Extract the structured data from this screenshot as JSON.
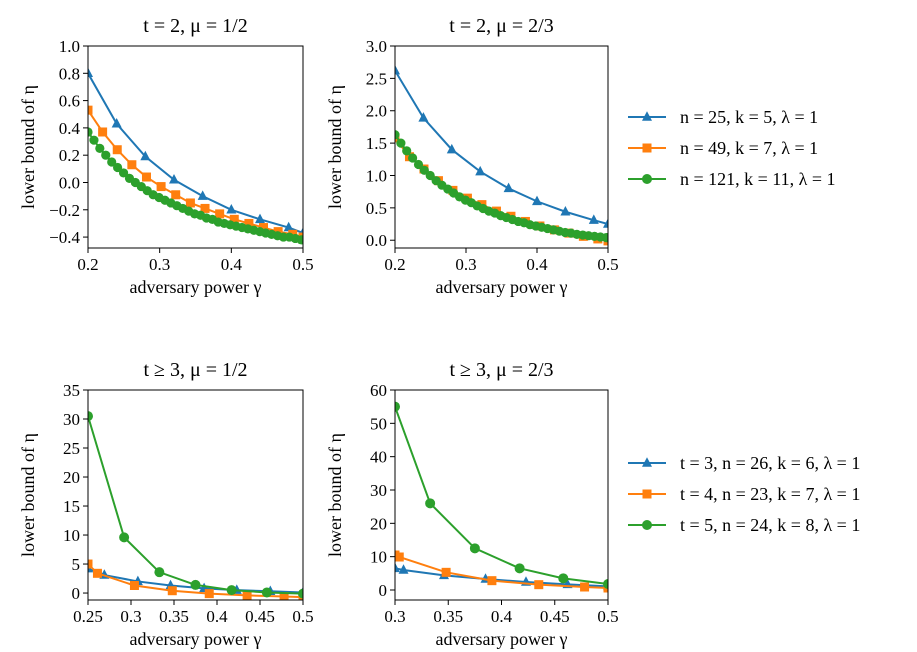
{
  "colors": {
    "blue": "#1f77b4",
    "orange": "#ff7f0e",
    "green": "#2ca02c"
  },
  "legends": [
    {
      "entries": [
        {
          "label": "n = 25, k = 5, λ = 1",
          "color": "#1f77b4",
          "marker": "triangle"
        },
        {
          "label": "n = 49, k = 7, λ = 1",
          "color": "#ff7f0e",
          "marker": "square"
        },
        {
          "label": "n = 121, k = 11, λ = 1",
          "color": "#2ca02c",
          "marker": "circle"
        }
      ]
    },
    {
      "entries": [
        {
          "label": "t = 3, n = 26, k = 6, λ = 1",
          "color": "#1f77b4",
          "marker": "triangle"
        },
        {
          "label": "t = 4, n = 23, k = 7, λ = 1",
          "color": "#ff7f0e",
          "marker": "square"
        },
        {
          "label": "t = 5, n = 24, k = 8, λ = 1",
          "color": "#2ca02c",
          "marker": "circle"
        }
      ]
    }
  ],
  "chart_data": [
    {
      "type": "line",
      "title": "t = 2, μ = 1/2",
      "xlabel": "adversary power γ",
      "ylabel": "lower bound of η",
      "xlim": [
        0.2,
        0.5
      ],
      "ylim": [
        -0.48,
        1.0
      ],
      "xticks": [
        0.2,
        0.3,
        0.4,
        0.5
      ],
      "xtick_labels": [
        "0.2",
        "0.3",
        "0.4",
        "0.5"
      ],
      "yticks": [
        -0.4,
        -0.2,
        0.0,
        0.2,
        0.4,
        0.6,
        0.8,
        1.0
      ],
      "ytick_labels": [
        "−0.4",
        "−0.2",
        "0.0",
        "0.2",
        "0.4",
        "0.6",
        "0.8",
        "1.0"
      ],
      "grid": false,
      "series": [
        {
          "name": "n = 25, k = 5, λ = 1",
          "color": "#1f77b4",
          "marker": "triangle",
          "x": [
            0.2,
            0.24,
            0.28,
            0.32,
            0.36,
            0.4,
            0.44,
            0.48,
            0.5
          ],
          "y": [
            0.8,
            0.43,
            0.19,
            0.02,
            -0.1,
            -0.2,
            -0.27,
            -0.33,
            -0.37
          ]
        },
        {
          "name": "n = 49, k = 7, λ = 1",
          "color": "#ff7f0e",
          "marker": "square",
          "x": [
            0.2,
            0.2204,
            0.2408,
            0.2612,
            0.2816,
            0.302,
            0.3224,
            0.3429,
            0.3633,
            0.3837,
            0.4041,
            0.4245,
            0.4449,
            0.4653,
            0.4857,
            0.5
          ],
          "y": [
            0.53,
            0.37,
            0.24,
            0.13,
            0.04,
            -0.03,
            -0.09,
            -0.15,
            -0.19,
            -0.23,
            -0.27,
            -0.3,
            -0.33,
            -0.36,
            -0.38,
            -0.4
          ]
        },
        {
          "name": "n = 121, k = 11, λ = 1",
          "color": "#2ca02c",
          "marker": "circle",
          "x": [
            0.2,
            0.2083,
            0.2165,
            0.2248,
            0.2331,
            0.2413,
            0.2496,
            0.2579,
            0.2661,
            0.2744,
            0.2826,
            0.2909,
            0.2992,
            0.3074,
            0.3157,
            0.324,
            0.3322,
            0.3405,
            0.3488,
            0.357,
            0.3653,
            0.3736,
            0.3818,
            0.3901,
            0.3983,
            0.4066,
            0.4149,
            0.4231,
            0.4314,
            0.4397,
            0.4479,
            0.4562,
            0.4645,
            0.4727,
            0.481,
            0.4893,
            0.4975,
            0.5
          ],
          "y": [
            0.37,
            0.31,
            0.25,
            0.2,
            0.15,
            0.11,
            0.07,
            0.03,
            0.0,
            -0.03,
            -0.06,
            -0.09,
            -0.11,
            -0.13,
            -0.15,
            -0.17,
            -0.19,
            -0.21,
            -0.23,
            -0.24,
            -0.26,
            -0.27,
            -0.29,
            -0.3,
            -0.31,
            -0.32,
            -0.33,
            -0.34,
            -0.35,
            -0.36,
            -0.37,
            -0.38,
            -0.39,
            -0.4,
            -0.4,
            -0.41,
            -0.42,
            -0.42
          ]
        }
      ]
    },
    {
      "type": "line",
      "title": "t = 2, μ = 2/3",
      "xlabel": "adversary power γ",
      "ylabel": "lower bound of η",
      "xlim": [
        0.2,
        0.5
      ],
      "ylim": [
        -0.12,
        3.0
      ],
      "xticks": [
        0.2,
        0.3,
        0.4,
        0.5
      ],
      "xtick_labels": [
        "0.2",
        "0.3",
        "0.4",
        "0.5"
      ],
      "yticks": [
        0.0,
        0.5,
        1.0,
        1.5,
        2.0,
        2.5,
        3.0
      ],
      "ytick_labels": [
        "0.0",
        "0.5",
        "1.0",
        "1.5",
        "2.0",
        "2.5",
        "3.0"
      ],
      "grid": false,
      "series": [
        {
          "name": "n = 25, k = 5, λ = 1",
          "color": "#1f77b4",
          "marker": "triangle",
          "x": [
            0.2,
            0.24,
            0.28,
            0.32,
            0.36,
            0.4,
            0.44,
            0.48,
            0.5
          ],
          "y": [
            2.62,
            1.89,
            1.4,
            1.06,
            0.8,
            0.6,
            0.44,
            0.31,
            0.25
          ]
        },
        {
          "name": "n = 49, k = 7, λ = 1",
          "color": "#ff7f0e",
          "marker": "square",
          "x": [
            0.2,
            0.2204,
            0.2408,
            0.2612,
            0.2816,
            0.302,
            0.3224,
            0.3429,
            0.3633,
            0.3837,
            0.4041,
            0.4245,
            0.4449,
            0.4653,
            0.4857,
            0.5
          ],
          "y": [
            1.58,
            1.29,
            1.1,
            0.92,
            0.77,
            0.65,
            0.55,
            0.45,
            0.37,
            0.29,
            0.22,
            0.16,
            0.11,
            0.06,
            0.02,
            -0.01
          ]
        },
        {
          "name": "n = 121, k = 11, λ = 1",
          "color": "#2ca02c",
          "marker": "circle",
          "x": [
            0.2,
            0.2083,
            0.2165,
            0.2248,
            0.2331,
            0.2413,
            0.2496,
            0.2579,
            0.2661,
            0.2744,
            0.2826,
            0.2909,
            0.2992,
            0.3074,
            0.3157,
            0.324,
            0.3322,
            0.3405,
            0.3488,
            0.357,
            0.3653,
            0.3736,
            0.3818,
            0.3901,
            0.3983,
            0.4066,
            0.4149,
            0.4231,
            0.4314,
            0.4397,
            0.4479,
            0.4562,
            0.4645,
            0.4727,
            0.481,
            0.4893,
            0.4975,
            0.5
          ],
          "y": [
            1.63,
            1.5,
            1.38,
            1.27,
            1.17,
            1.08,
            1.0,
            0.92,
            0.85,
            0.79,
            0.73,
            0.67,
            0.62,
            0.58,
            0.53,
            0.49,
            0.45,
            0.42,
            0.38,
            0.35,
            0.32,
            0.29,
            0.27,
            0.24,
            0.22,
            0.2,
            0.18,
            0.16,
            0.14,
            0.12,
            0.11,
            0.09,
            0.08,
            0.07,
            0.06,
            0.05,
            0.04,
            0.04
          ]
        }
      ]
    },
    {
      "type": "line",
      "title": "t ≥ 3, μ = 1/2",
      "xlabel": "adversary power γ",
      "ylabel": "lower bound of η",
      "xlim": [
        0.25,
        0.5
      ],
      "ylim": [
        -1.2,
        35
      ],
      "xticks": [
        0.25,
        0.3,
        0.35,
        0.4,
        0.45,
        0.5
      ],
      "xtick_labels": [
        "0.25",
        "0.3",
        "0.35",
        "0.4",
        "0.45",
        "0.5"
      ],
      "yticks": [
        0,
        5,
        10,
        15,
        20,
        25,
        30,
        35
      ],
      "ytick_labels": [
        "0",
        "5",
        "10",
        "15",
        "20",
        "25",
        "30",
        "35"
      ],
      "grid": false,
      "series": [
        {
          "name": "t = 3, n = 26, k = 6, λ = 1",
          "color": "#1f77b4",
          "marker": "triangle",
          "x": [
            0.25,
            0.269,
            0.308,
            0.346,
            0.385,
            0.423,
            0.462,
            0.5
          ],
          "y": [
            4.2,
            3.1,
            2.0,
            1.3,
            0.8,
            0.5,
            0.3,
            0.1
          ]
        },
        {
          "name": "t = 4, n = 23, k = 7, λ = 1",
          "color": "#ff7f0e",
          "marker": "square",
          "x": [
            0.25,
            0.261,
            0.304,
            0.348,
            0.391,
            0.435,
            0.478,
            0.5
          ],
          "y": [
            5.0,
            3.4,
            1.3,
            0.4,
            -0.1,
            -0.4,
            -0.6,
            -0.7
          ]
        },
        {
          "name": "t = 5, n = 24, k = 8, λ = 1",
          "color": "#2ca02c",
          "marker": "circle",
          "x": [
            0.25,
            0.292,
            0.333,
            0.375,
            0.417,
            0.458,
            0.5
          ],
          "y": [
            30.5,
            9.6,
            3.6,
            1.4,
            0.5,
            0.1,
            -0.1
          ]
        }
      ]
    },
    {
      "type": "line",
      "title": "t ≥ 3, μ = 2/3",
      "xlabel": "adversary power γ",
      "ylabel": "lower bound of η",
      "xlim": [
        0.3,
        0.5
      ],
      "ylim": [
        -3,
        60
      ],
      "xticks": [
        0.3,
        0.35,
        0.4,
        0.45,
        0.5
      ],
      "xtick_labels": [
        "0.3",
        "0.35",
        "0.4",
        "0.45",
        "0.5"
      ],
      "yticks": [
        0,
        10,
        20,
        30,
        40,
        50,
        60
      ],
      "ytick_labels": [
        "0",
        "10",
        "20",
        "30",
        "40",
        "50",
        "60"
      ],
      "grid": false,
      "series": [
        {
          "name": "t = 3, n = 26, k = 6, λ = 1",
          "color": "#1f77b4",
          "marker": "triangle",
          "x": [
            0.3,
            0.308,
            0.346,
            0.385,
            0.423,
            0.462,
            0.5
          ],
          "y": [
            6.5,
            6.0,
            4.4,
            3.3,
            2.4,
            1.7,
            1.1
          ]
        },
        {
          "name": "t = 4, n = 23, k = 7, λ = 1",
          "color": "#ff7f0e",
          "marker": "square",
          "x": [
            0.3,
            0.304,
            0.348,
            0.391,
            0.435,
            0.478,
            0.5
          ],
          "y": [
            10.5,
            9.9,
            5.3,
            2.8,
            1.6,
            0.9,
            0.6
          ]
        },
        {
          "name": "t = 5, n = 24, k = 8, λ = 1",
          "color": "#2ca02c",
          "marker": "circle",
          "x": [
            0.3,
            0.333,
            0.375,
            0.417,
            0.458,
            0.5
          ],
          "y": [
            55.0,
            26.0,
            12.5,
            6.5,
            3.5,
            1.8
          ]
        }
      ]
    }
  ]
}
